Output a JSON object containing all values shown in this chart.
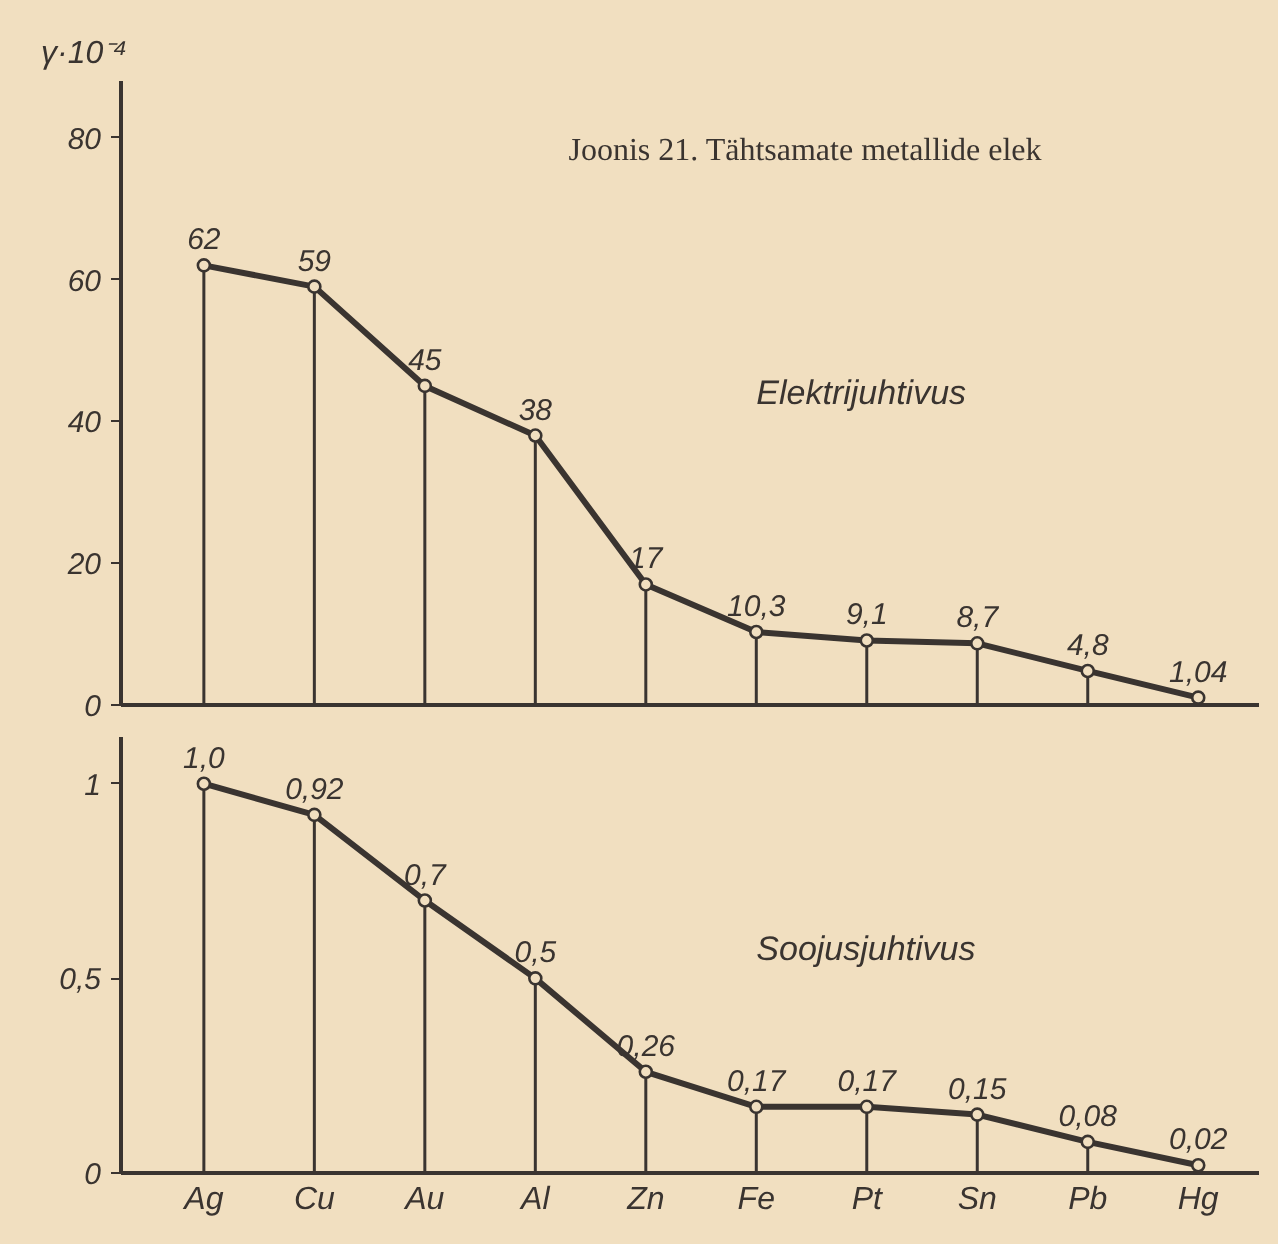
{
  "chart_data": [
    {
      "type": "lollipop",
      "title": "Joonis 21. Tähtsamate metallide elek",
      "ylabel": "γ·10⁻⁴",
      "annotations": [
        "Elektrijuhtivus"
      ],
      "categories": [
        null,
        null,
        null,
        null,
        null,
        null,
        null,
        null,
        null,
        null
      ],
      "series": [
        {
          "color": "#3a3430",
          "marker": "circle",
          "values": [
            62,
            59,
            45,
            38,
            17,
            10.3,
            9.1,
            8.7,
            4.8,
            1.04
          ],
          "value_labels": [
            "62",
            "59",
            "45",
            "38",
            "17",
            "10,3",
            "9,1",
            "8,7",
            "4,8",
            "1,04"
          ]
        },
        {
          "type": "line",
          "color": "#3a3430",
          "values": [
            62,
            59,
            45,
            38,
            17,
            10.3,
            9.1,
            8.7,
            4.8,
            1.04
          ]
        }
      ],
      "ylim": [
        0,
        88
      ],
      "yticks": [
        0,
        20,
        40,
        60,
        80
      ],
      "tick_labels": "y",
      "line_style": "solid"
    },
    {
      "type": "lollipop",
      "annotations": [
        "Soojusjuhtivus"
      ],
      "categories": [
        "Ag",
        "Cu",
        "Au",
        "Al",
        "Zn",
        "Fe",
        "Pt",
        "Sn",
        "Pb",
        "Hg"
      ],
      "series": [
        {
          "color": "#3a3430",
          "marker": "circle",
          "values": [
            1.0,
            0.92,
            0.7,
            0.5,
            0.26,
            0.17,
            0.17,
            0.15,
            0.08,
            0.02
          ],
          "value_labels": [
            "1,0",
            "0,92",
            "0,7",
            "0,5",
            "0,26",
            "0,17",
            "0,17",
            "0,15",
            "0,08",
            "0,02"
          ]
        },
        {
          "type": "line",
          "color": "#3a3430",
          "values": [
            1.0,
            0.92,
            0.7,
            0.5,
            0.26,
            0.17,
            0.17,
            0.15,
            0.08,
            0.02
          ]
        }
      ],
      "ylim": [
        0,
        1.12
      ],
      "yticks": [
        0,
        {
          "value": 0.5,
          "label": "0,5"
        },
        1
      ],
      "line_style": "solid"
    }
  ]
}
